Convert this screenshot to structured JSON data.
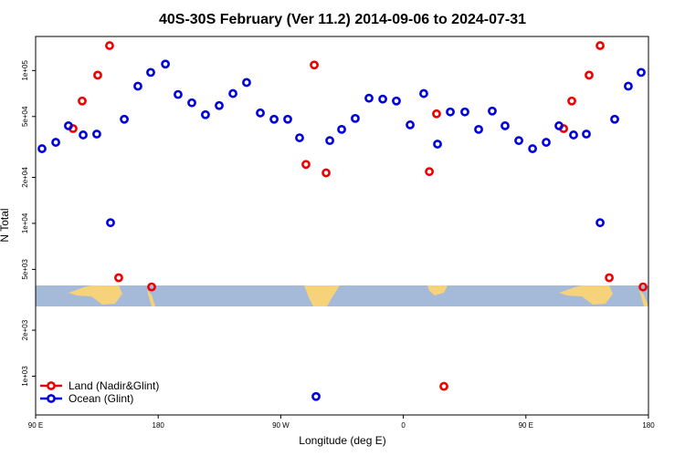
{
  "chart_data": {
    "type": "scatter",
    "title": "40S-30S February (Ver 11.2)   2014-09-06 to 2024-07-31",
    "x_label": "Longitude (deg E)",
    "y_label": "N Total",
    "log_y": true,
    "legend_position": "lower left",
    "xlim": [
      90,
      540
    ],
    "xticks": [
      {
        "value": 90,
        "label": "90 E"
      },
      180,
      {
        "value": 270,
        "label": "90 W"
      },
      {
        "value": 360,
        "label": "0"
      },
      {
        "value": 450,
        "label": "90 E"
      },
      {
        "value": 540,
        "label": "180"
      }
    ],
    "ylim": [
      558,
      167000
    ],
    "yticks": [
      {
        "value": 1000,
        "label": "1e+03"
      },
      {
        "value": 2000,
        "label": "2e+03"
      },
      {
        "value": 5000,
        "label": "5e+03"
      },
      {
        "value": 10000,
        "label": "1e+04"
      },
      {
        "value": 20000,
        "label": "2e+04"
      },
      {
        "value": 50000,
        "label": "5e+04"
      },
      {
        "value": 100000,
        "label": "1e+05"
      }
    ],
    "series": [
      {
        "name": "Land (Nadir&Glint)",
        "color": "#ee0000",
        "x": [
          117.5,
          124.2,
          135.6,
          144.3,
          151.0,
          175.2,
          288.5,
          294.6,
          303.3,
          379.1,
          384.4,
          389.8,
          477.7,
          483.7,
          496.4,
          504.5,
          511.2,
          536.0
        ],
        "values": [
          41700,
          63200,
          93300,
          145500,
          4410,
          3840,
          24300,
          108700,
          21400,
          21800,
          52100,
          859,
          41700,
          63200,
          93300,
          145500,
          4410,
          3840
        ]
      },
      {
        "name": "Ocean (Glint)",
        "color": "#0000dd",
        "x": [
          94.7,
          104.8,
          114.1,
          124.9,
          134.9,
          145.0,
          155.1,
          165.1,
          174.5,
          185.3,
          194.6,
          204.7,
          214.7,
          224.8,
          234.9,
          244.9,
          255.0,
          265.1,
          275.1,
          283.8,
          295.9,
          306.0,
          314.7,
          324.7,
          334.8,
          344.9,
          354.9,
          365.0,
          375.0,
          385.1,
          394.5,
          405.2,
          415.3,
          425.3,
          434.7,
          444.8,
          454.9,
          464.9,
          474.3,
          485.0,
          494.4,
          504.5,
          515.2,
          525.2,
          534.6
        ],
        "values": [
          30800,
          33900,
          43500,
          37900,
          38400,
          10100,
          48000,
          79000,
          97200,
          110200,
          69700,
          61500,
          51400,
          59000,
          70700,
          83500,
          52800,
          48000,
          48000,
          36300,
          737,
          34800,
          41200,
          48600,
          65900,
          65000,
          63200,
          44100,
          70700,
          33000,
          53600,
          53600,
          41200,
          54300,
          43500,
          34800,
          30800,
          33900,
          43500,
          37900,
          38400,
          10100,
          48000,
          79000,
          97200
        ]
      }
    ]
  }
}
